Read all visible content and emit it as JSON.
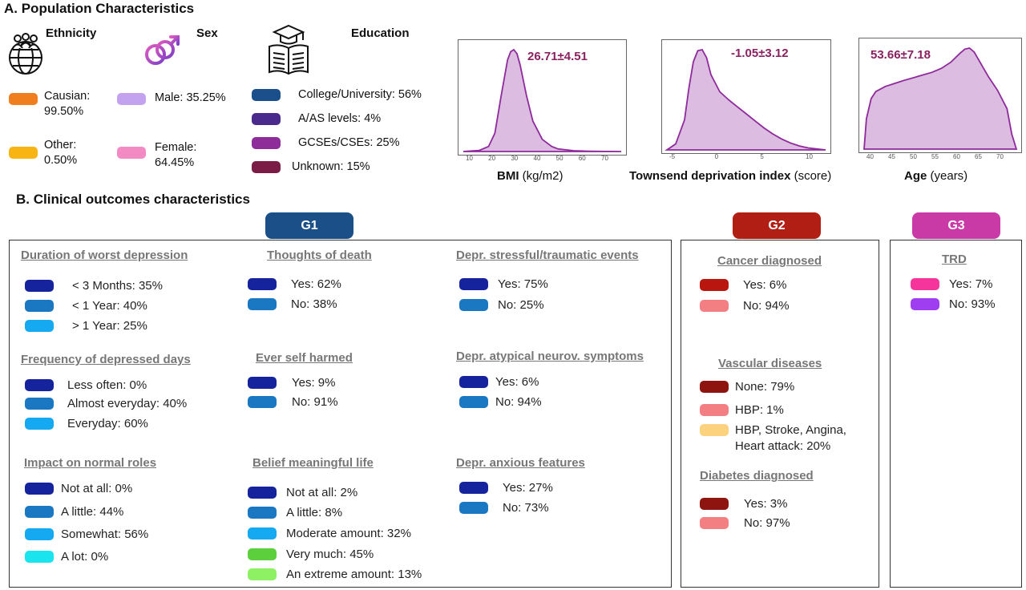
{
  "section_a": {
    "title": "A. Population Characteristics"
  },
  "ethnicity": {
    "title": "Ethnicity",
    "icon": "globe-people-icon",
    "items": [
      {
        "label": "Causian:\n99.50%",
        "color": "#f07d1e"
      },
      {
        "label": "Other:\n0.50%",
        "color": "#f7b413"
      }
    ]
  },
  "sex": {
    "title": "Sex",
    "icon": "gender-symbols-icon",
    "items": [
      {
        "label": "Male: 35.25%",
        "color": "#c3a2ef"
      },
      {
        "label": "Female:\n64.45%",
        "color": "#f48ac4"
      }
    ]
  },
  "education": {
    "title": "Education",
    "icon": "open-book-icon",
    "items": [
      {
        "label": "College/University: 56%",
        "color": "#1b4f8c"
      },
      {
        "label": "A/AS levels: 4%",
        "color": "#4b2a8e"
      },
      {
        "label": "GCSEs/CSEs: 25%",
        "color": "#8e2c9a"
      },
      {
        "label": "Unknown: 15%",
        "color": "#7a1c45"
      }
    ]
  },
  "chart_data": [
    {
      "type": "area",
      "xlabel_bold": "BMI",
      "xlabel_unit": "(kg/m2)",
      "annotation": "26.71±4.51",
      "x_ticks": [
        "10",
        "20",
        "30",
        "40",
        "50",
        "60",
        "70"
      ],
      "x": [
        10,
        15,
        18,
        20,
        22,
        24,
        25,
        26,
        27,
        28,
        30,
        32,
        35,
        38,
        40,
        45,
        50,
        55,
        60
      ],
      "y": [
        0,
        0.01,
        0.05,
        0.18,
        0.55,
        0.9,
        0.98,
        1.0,
        0.96,
        0.85,
        0.55,
        0.3,
        0.12,
        0.05,
        0.025,
        0.008,
        0.003,
        0.001,
        0
      ],
      "color": "#dcbce0"
    },
    {
      "type": "area",
      "xlabel_bold": "Townsend deprivation index",
      "xlabel_unit": "(score)",
      "annotation": "-1.05±3.12",
      "x_ticks": [
        "-5",
        "0",
        "5",
        "10"
      ],
      "x": [
        -7,
        -6,
        -5,
        -4.5,
        -4,
        -3.5,
        -3,
        -2.5,
        -2,
        -1,
        0,
        1,
        2,
        3,
        4,
        5,
        6,
        7,
        8,
        9,
        10,
        11
      ],
      "y": [
        0,
        0.06,
        0.3,
        0.62,
        0.88,
        0.99,
        1.0,
        0.92,
        0.75,
        0.58,
        0.5,
        0.43,
        0.36,
        0.29,
        0.22,
        0.16,
        0.11,
        0.07,
        0.04,
        0.02,
        0.01,
        0
      ],
      "color": "#dcbce0"
    },
    {
      "type": "area",
      "xlabel_bold": "Age",
      "xlabel_unit": "(years)",
      "annotation": "53.66±7.18",
      "x_ticks": [
        "40",
        "45",
        "50",
        "55",
        "60",
        "65",
        "70"
      ],
      "x": [
        38.5,
        39,
        40,
        41,
        43,
        45,
        47,
        50,
        53,
        55,
        57,
        59,
        60,
        61,
        62,
        63,
        65,
        67,
        69,
        70,
        71
      ],
      "y": [
        0,
        0.3,
        0.5,
        0.57,
        0.62,
        0.65,
        0.68,
        0.72,
        0.76,
        0.8,
        0.86,
        0.95,
        0.99,
        1.0,
        0.96,
        0.88,
        0.72,
        0.58,
        0.4,
        0.15,
        0
      ],
      "color": "#dcbce0"
    }
  ],
  "section_b": {
    "title": "B. Clinical outcomes characteristics"
  },
  "groups": {
    "g1": {
      "label": "G1",
      "color": "#1a5087"
    },
    "g2": {
      "label": "G2",
      "color": "#b11f14"
    },
    "g3": {
      "label": "G3",
      "color": "#c93aa6"
    }
  },
  "g1_blocks": [
    {
      "heading": "Duration of worst depression",
      "items": [
        {
          "label": "< 3 Months: 35%",
          "color": "#15239c"
        },
        {
          "label": "< 1 Year: 40%",
          "color": "#1a78c2"
        },
        {
          "label": "> 1 Year: 25%",
          "color": "#15a9f1"
        }
      ]
    },
    {
      "heading": "Frequency of depressed days",
      "items": [
        {
          "label": "Less often: 0%",
          "color": "#15239c"
        },
        {
          "label": "Almost everyday: 40%",
          "color": "#1a78c2"
        },
        {
          "label": "Everyday: 60%",
          "color": "#15a9f1"
        }
      ]
    },
    {
      "heading": "Impact on normal roles",
      "items": [
        {
          "label": "Not at all: 0%",
          "color": "#15239c"
        },
        {
          "label": "A little: 44%",
          "color": "#1a78c2"
        },
        {
          "label": "Somewhat: 56%",
          "color": "#15a9f1"
        },
        {
          "label": "A lot: 0%",
          "color": "#1ae4ee"
        }
      ]
    },
    {
      "heading": "Thoughts of death",
      "items": [
        {
          "label": "Yes: 62%",
          "color": "#15239c"
        },
        {
          "label": "No: 38%",
          "color": "#1a78c2"
        }
      ]
    },
    {
      "heading": "Ever self harmed",
      "items": [
        {
          "label": "Yes: 9%",
          "color": "#15239c"
        },
        {
          "label": "No: 91%",
          "color": "#1a78c2"
        }
      ]
    },
    {
      "heading": "Belief meaningful life",
      "items": [
        {
          "label": "Not at all: 2%",
          "color": "#15239c"
        },
        {
          "label": "A little: 8%",
          "color": "#1a78c2"
        },
        {
          "label": "Moderate amount: 32%",
          "color": "#15a9f1"
        },
        {
          "label": "Very much: 45%",
          "color": "#5ccf3d"
        },
        {
          "label": "An extreme amount: 13%",
          "color": "#8ef063"
        }
      ]
    },
    {
      "heading": "Depr. stressful/traumatic events",
      "items": [
        {
          "label": "Yes: 75%",
          "color": "#15239c"
        },
        {
          "label": "No: 25%",
          "color": "#1a78c2"
        }
      ]
    },
    {
      "heading": "Depr. atypical neurov. symptoms",
      "items": [
        {
          "label": "Yes: 6%",
          "color": "#15239c"
        },
        {
          "label": "No: 94%",
          "color": "#1a78c2"
        }
      ]
    },
    {
      "heading": "Depr. anxious features",
      "items": [
        {
          "label": "Yes: 27%",
          "color": "#15239c"
        },
        {
          "label": "No: 73%",
          "color": "#1a78c2"
        }
      ]
    }
  ],
  "g2_blocks": [
    {
      "heading": "Cancer diagnosed",
      "items": [
        {
          "label": "Yes: 6%",
          "color": "#b8160f"
        },
        {
          "label": "No: 94%",
          "color": "#f37f82"
        }
      ]
    },
    {
      "heading": "Vascular diseases",
      "items": [
        {
          "label": "None: 79%",
          "color": "#8e150f"
        },
        {
          "label": "HBP: 1%",
          "color": "#f37f82"
        },
        {
          "label": "HBP, Stroke, Angina,\nHeart attack: 20%",
          "color": "#fcd27e"
        }
      ]
    },
    {
      "heading": "Diabetes diagnosed",
      "items": [
        {
          "label": "Yes: 3%",
          "color": "#8e150f"
        },
        {
          "label": "No: 97%",
          "color": "#f37f82"
        }
      ]
    }
  ],
  "g3_blocks": [
    {
      "heading": "TRD",
      "items": [
        {
          "label": "Yes: 7%",
          "color": "#f5359b"
        },
        {
          "label": "No: 93%",
          "color": "#9f3ef0"
        }
      ]
    }
  ]
}
